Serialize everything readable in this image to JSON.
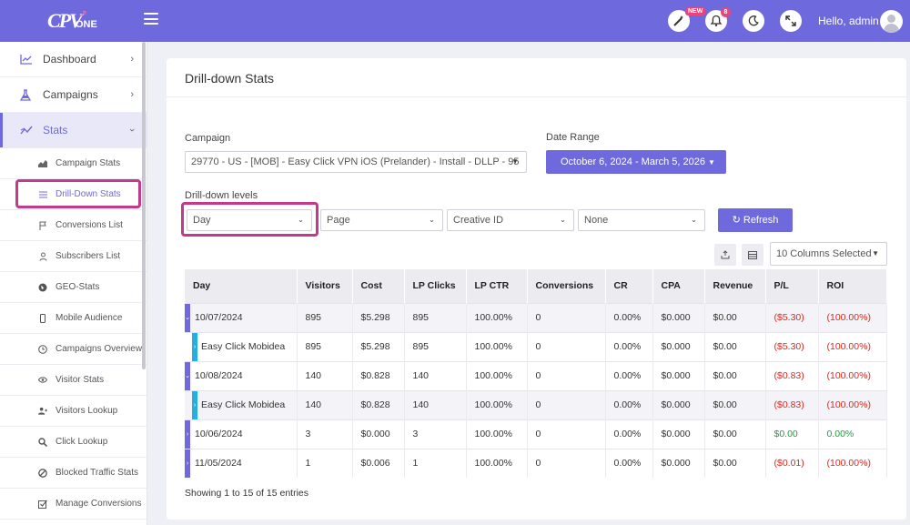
{
  "topbar": {
    "logo_text": "CPV",
    "logo_sub": "ONE",
    "new_badge": "NEW",
    "notif_count": "8",
    "greeting": "Hello, admin"
  },
  "sidebar": {
    "main_items": [
      {
        "label": "Dashboard"
      },
      {
        "label": "Campaigns"
      },
      {
        "label": "Stats"
      }
    ],
    "sub_items": [
      {
        "label": "Campaign Stats"
      },
      {
        "label": "Drill-Down Stats"
      },
      {
        "label": "Conversions List"
      },
      {
        "label": "Subscribers List"
      },
      {
        "label": "GEO-Stats"
      },
      {
        "label": "Mobile Audience"
      },
      {
        "label": "Campaigns Overview"
      },
      {
        "label": "Visitor Stats"
      },
      {
        "label": "Visitors Lookup"
      },
      {
        "label": "Click Lookup"
      },
      {
        "label": "Blocked Traffic Stats"
      },
      {
        "label": "Manage Conversions"
      }
    ]
  },
  "page": {
    "title": "Drill-down Stats",
    "campaign_label": "Campaign",
    "campaign_value": "29770 - US - [MOB] - Easy Click VPN iOS (Prelander) - Install  -  DLLP  -  95",
    "date_range_label": "Date Range",
    "date_range_value": "October 6, 2024 - March 5, 2026",
    "levels_label": "Drill-down levels",
    "levels": [
      "Day",
      "Page",
      "Creative ID",
      "None"
    ],
    "refresh_label": "Refresh",
    "columns_selected": "10 Columns Selected",
    "footer": "Showing 1 to 15 of 15 entries"
  },
  "table": {
    "headers": [
      "Day",
      "Visitors",
      "Cost",
      "LP Clicks",
      "LP CTR",
      "Conversions",
      "CR",
      "CPA",
      "Revenue",
      "P/L",
      "ROI"
    ],
    "rows": [
      [
        "10/07/2024",
        "895",
        "$5.298",
        "895",
        "100.00%",
        "0",
        "0.00%",
        "$0.000",
        "$0.00",
        "($5.30)",
        "(100.00%)"
      ],
      [
        "Easy Click Mobidea",
        "895",
        "$5.298",
        "895",
        "100.00%",
        "0",
        "0.00%",
        "$0.000",
        "$0.00",
        "($5.30)",
        "(100.00%)"
      ],
      [
        "10/08/2024",
        "140",
        "$0.828",
        "140",
        "100.00%",
        "0",
        "0.00%",
        "$0.000",
        "$0.00",
        "($0.83)",
        "(100.00%)"
      ],
      [
        "Easy Click Mobidea",
        "140",
        "$0.828",
        "140",
        "100.00%",
        "0",
        "0.00%",
        "$0.000",
        "$0.00",
        "($0.83)",
        "(100.00%)"
      ],
      [
        "10/06/2024",
        "3",
        "$0.000",
        "3",
        "100.00%",
        "0",
        "0.00%",
        "$0.000",
        "$0.00",
        "$0.00",
        "0.00%"
      ],
      [
        "11/05/2024",
        "1",
        "$0.006",
        "1",
        "100.00%",
        "0",
        "0.00%",
        "$0.000",
        "$0.00",
        "($0.01)",
        "(100.00%)"
      ]
    ]
  },
  "colors": {
    "accent": "#6f69de",
    "highlight": "#c33a8c",
    "negative": "#e0261c",
    "positive": "#19a23f",
    "child_toggle": "#26aee0"
  }
}
